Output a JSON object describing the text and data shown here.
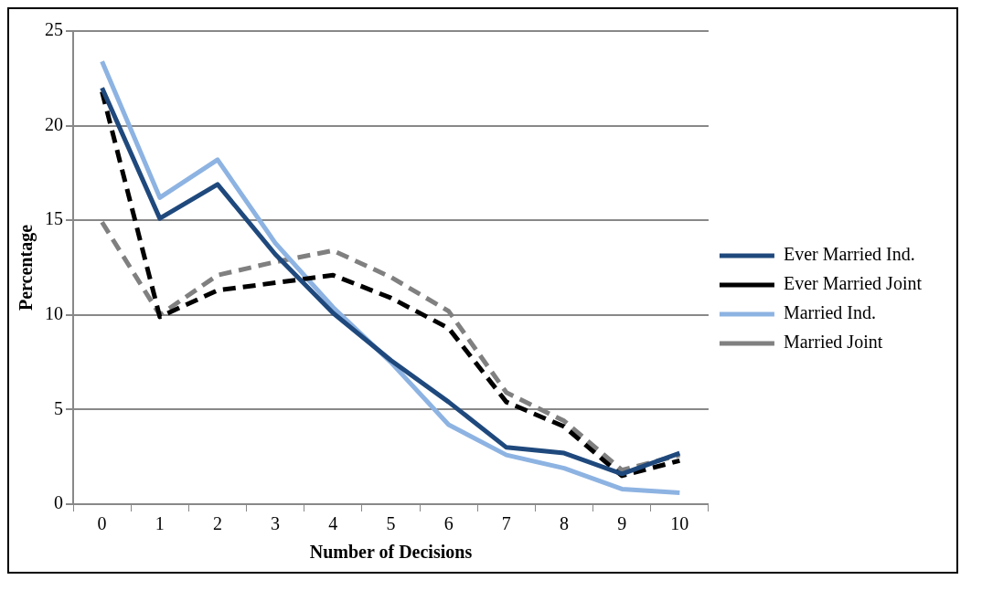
{
  "chart_data": {
    "type": "line",
    "xlabel": "Number of Decisions",
    "ylabel": "Percentage",
    "categories": [
      "0",
      "1",
      "2",
      "3",
      "4",
      "5",
      "6",
      "7",
      "8",
      "9",
      "10"
    ],
    "series": [
      {
        "name": "Ever Married Ind.",
        "color": "#1f497d",
        "line_style": "solid",
        "values": [
          22.0,
          15.1,
          16.9,
          13.2,
          10.1,
          7.6,
          5.4,
          3.0,
          2.7,
          1.6,
          2.7
        ]
      },
      {
        "name": "Ever Married Joint",
        "color": "#000000",
        "line_style": "dashed",
        "values": [
          21.8,
          9.9,
          11.3,
          11.7,
          12.1,
          10.9,
          9.3,
          5.4,
          4.1,
          1.5,
          2.3
        ]
      },
      {
        "name": "Married Ind.",
        "color": "#8db3e2",
        "line_style": "solid",
        "values": [
          23.4,
          16.2,
          18.2,
          13.8,
          10.4,
          7.5,
          4.2,
          2.6,
          1.9,
          0.8,
          0.6
        ]
      },
      {
        "name": "Married Joint",
        "color": "#808080",
        "line_style": "dashed",
        "values": [
          14.9,
          10.0,
          12.1,
          12.8,
          13.4,
          12.0,
          10.2,
          5.9,
          4.4,
          1.8,
          2.6
        ]
      }
    ],
    "ylim": [
      0,
      25
    ],
    "yticks": [
      0,
      5,
      10,
      15,
      20,
      25
    ],
    "grid": "y",
    "legend": "right",
    "marker": "none"
  }
}
